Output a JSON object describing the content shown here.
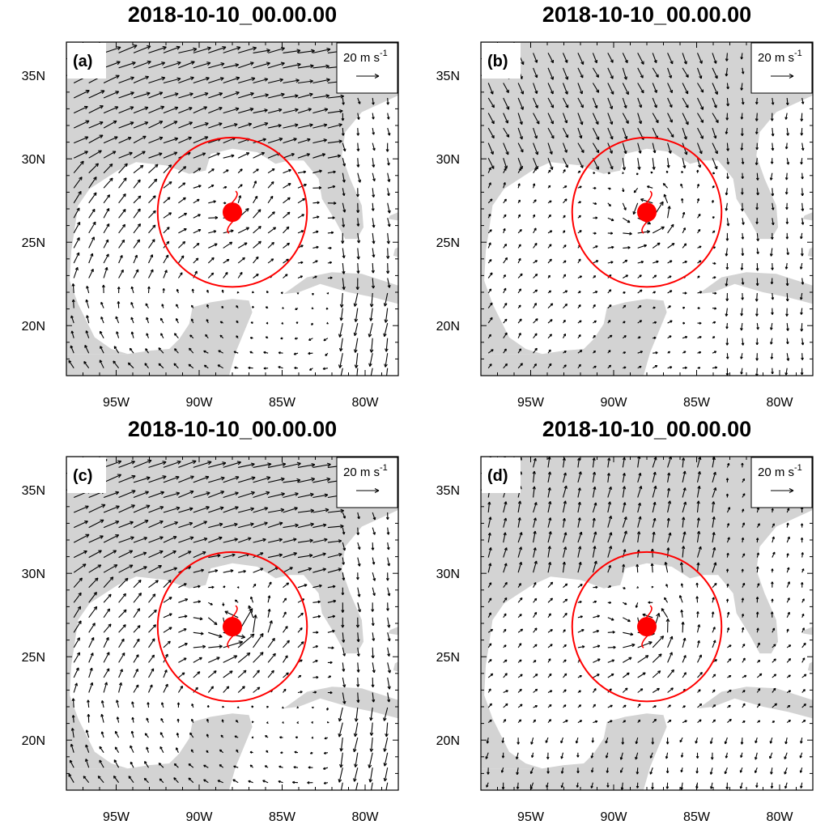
{
  "panels": [
    {
      "id": "a",
      "title": "2018-10-10_00.00.00",
      "label": "(a)",
      "seed": 11,
      "pattern": "a",
      "eye_scale": 1.0
    },
    {
      "id": "b",
      "title": "2018-10-10_00.00.00",
      "label": "(b)",
      "seed": 23,
      "pattern": "b",
      "eye_scale": 1.0
    },
    {
      "id": "c",
      "title": "2018-10-10_00.00.00",
      "label": "(c)",
      "seed": 37,
      "pattern": "c",
      "eye_scale": 1.0
    },
    {
      "id": "d",
      "title": "2018-10-10_00.00.00",
      "label": "(d)",
      "seed": 41,
      "pattern": "d",
      "eye_scale": 1.0
    }
  ],
  "reference_vector": {
    "text": "20 m s",
    "exponent": "-1"
  },
  "axes": {
    "lon_ticks": [
      {
        "value": -95,
        "label": "95W"
      },
      {
        "value": -90,
        "label": "90W"
      },
      {
        "value": -85,
        "label": "85W"
      },
      {
        "value": -80,
        "label": "80W"
      }
    ],
    "lat_ticks": [
      {
        "value": 20,
        "label": "20N"
      },
      {
        "value": 25,
        "label": "25N"
      },
      {
        "value": 30,
        "label": "30N"
      },
      {
        "value": 35,
        "label": "35N"
      }
    ],
    "lon_range": [
      -98,
      -78
    ],
    "lat_range": [
      17,
      37
    ]
  },
  "storm": {
    "center_lon": -88,
    "center_lat": 26.8,
    "circle_radius_deg": 4.5
  },
  "colors": {
    "land": "#d3d3d3",
    "ocean": "#ffffff",
    "storm": "#ff0000",
    "vectors": "#000000"
  }
}
